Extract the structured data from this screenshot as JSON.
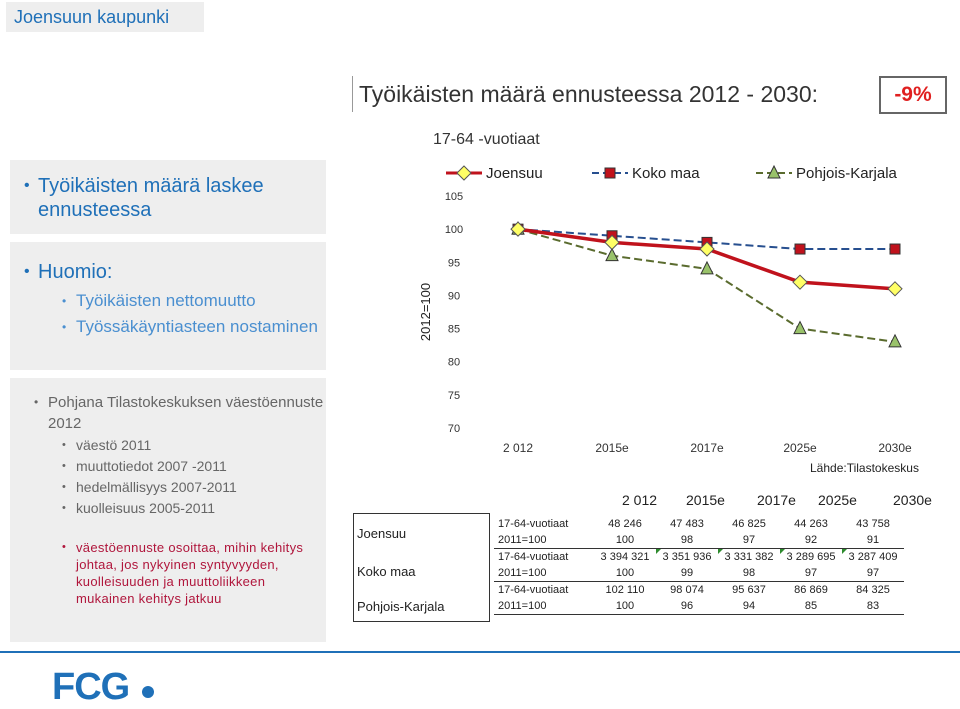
{
  "header": {
    "org": "Joensuun kaupunki"
  },
  "title": "Työikäisten määrä ennusteessa 2012 - 2030:",
  "change_badge": "-9%",
  "subtitle": "17-64 -vuotiaat",
  "left": {
    "bullet1": "Työikäisten määrä laskee ennusteessa",
    "note_title": "Huomio:",
    "note_items": [
      "Työikäisten nettomuutto",
      "Työssäkäyntiasteen nostaminen"
    ],
    "source_title": "Pohjana Tilastokeskuksen väestöennuste 2012",
    "source_items": [
      "väestö 2011",
      "muuttotiedot 2007 -2011",
      "hedelmällisyys 2007-2011",
      "kuolleisuus 2005-2011"
    ],
    "conclusion": "väestöennuste osoittaa, mihin kehitys johtaa, jos nykyinen syntyvyyden, kuolleisuuden ja muuttoliikkeen mukainen kehitys jatkuu"
  },
  "chart_data": {
    "type": "line",
    "categories": [
      "2 012",
      "2015e",
      "2017e",
      "2025e",
      "2030e"
    ],
    "ylabel": "2012=100",
    "ylim": [
      70,
      105
    ],
    "yticks": [
      70,
      75,
      80,
      85,
      90,
      95,
      100,
      105
    ],
    "legend_position": "top",
    "series": [
      {
        "name": "Joensuu",
        "values": [
          100,
          98,
          97,
          92,
          91
        ],
        "color": "#c0121c",
        "marker": "diamond",
        "marker_fill": "#ffff66",
        "dash": "solid"
      },
      {
        "name": "Koko maa",
        "values": [
          100,
          99,
          98,
          97,
          97
        ],
        "color": "#274f8f",
        "marker": "square",
        "marker_fill": "#c0121c",
        "dash": "dashed"
      },
      {
        "name": "Pohjois-Karjala",
        "values": [
          100,
          96,
          94,
          85,
          83
        ],
        "color": "#5a6b2e",
        "marker": "triangle",
        "marker_fill": "#99c26a",
        "dash": "dashed"
      }
    ]
  },
  "source_note": "Lähde:Tilastokeskus",
  "table": {
    "headers": [
      "2 012",
      "2015e",
      "2017e",
      "2025e",
      "2030e"
    ],
    "regions": [
      "Joensuu",
      "Koko maa",
      "Pohjois-Karjala"
    ],
    "rows": [
      {
        "label": "17-64-vuotiaat",
        "values": [
          "48 246",
          "47 483",
          "46 825",
          "44 263",
          "43 758"
        ]
      },
      {
        "label": "2011=100",
        "values": [
          "100",
          "98",
          "97",
          "92",
          "91"
        ]
      },
      {
        "label": "17-64-vuotiaat",
        "values": [
          "3 394 321",
          "3 351 936",
          "3 331 382",
          "3 289 695",
          "3 287 409"
        ]
      },
      {
        "label": "2011=100",
        "values": [
          "100",
          "99",
          "98",
          "97",
          "97"
        ]
      },
      {
        "label": "17-64-vuotiaat",
        "values": [
          "102 110",
          "98 074",
          "95 637",
          "86 869",
          "84 325"
        ]
      },
      {
        "label": "2011=100",
        "values": [
          "100",
          "96",
          "94",
          "85",
          "83"
        ]
      }
    ]
  },
  "logo_text": "FCG"
}
